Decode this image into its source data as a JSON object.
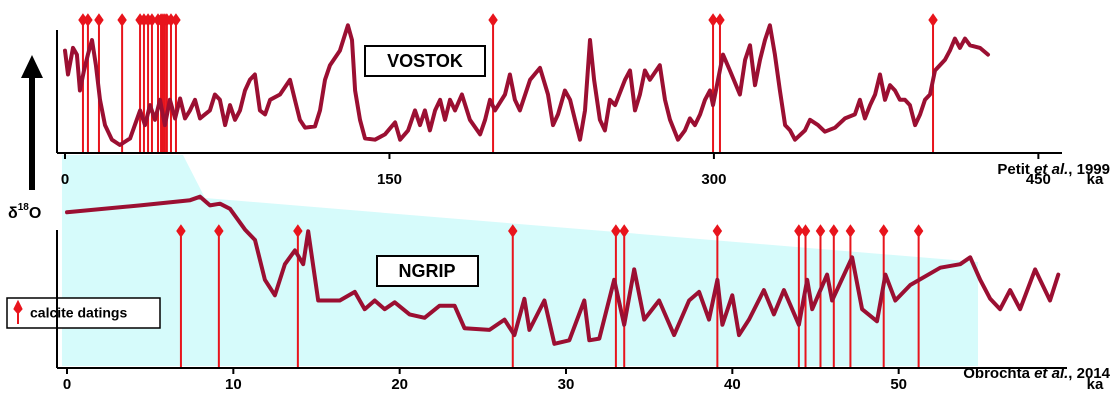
{
  "chart_data": [
    {
      "type": "line",
      "title": "VOSTOK",
      "citation": {
        "author": "Petit",
        "etal": "et al.",
        "year": ", 1999"
      },
      "xlabel": "ka",
      "xlim": [
        0,
        460
      ],
      "xticks": [
        0,
        150,
        300,
        450
      ],
      "ylim": [
        0,
        100
      ],
      "x": [
        0,
        1.4,
        3.7,
        5.5,
        6.9,
        8.8,
        10.6,
        12.5,
        14.3,
        16.2,
        18.5,
        21.7,
        25.4,
        30.1,
        34.7,
        37,
        39.3,
        41.6,
        43.9,
        46.2,
        48.5,
        50.9,
        53.2,
        55.5,
        57.8,
        60.1,
        62.4,
        64.7,
        67,
        69.3,
        71.6,
        74,
        76.3,
        78.6,
        80.9,
        83.2,
        85.5,
        87.8,
        90.1,
        92.5,
        94.8,
        99.4,
        104,
        106.3,
        108.6,
        111,
        115.6,
        117.9,
        120.2,
        122.5,
        127.1,
        130.8,
        132.7,
        134.1,
        136.4,
        138.7,
        143.3,
        147.9,
        152.6,
        154.9,
        158.6,
        161.8,
        164.1,
        166.4,
        168.7,
        171.1,
        173.4,
        175.7,
        178,
        180.3,
        183.5,
        187.2,
        191.9,
        194.2,
        196.5,
        198.8,
        203.4,
        205.7,
        208,
        210.3,
        215,
        219.6,
        223.3,
        225.6,
        227.9,
        231.1,
        233.5,
        235.8,
        238.1,
        240.4,
        242.7,
        244.6,
        247.3,
        249.6,
        251.9,
        254.3,
        258.9,
        261.2,
        263.5,
        265.8,
        268.1,
        270.4,
        275,
        277.4,
        279.7,
        283.4,
        286.6,
        288.9,
        291.2,
        293.6,
        295.9,
        298.2,
        299.6,
        301.9,
        304.2,
        307.4,
        312,
        314.4,
        316.7,
        319,
        321.3,
        323.6,
        325.9,
        328.2,
        330.5,
        332.9,
        335.2,
        337.5,
        342.1,
        344.4,
        348.1,
        351.3,
        356,
        360.6,
        365.2,
        367.5,
        369.8,
        372.2,
        374.5,
        376.8,
        379.1,
        381.4,
        383.7,
        386,
        388.3,
        390.6,
        393,
        395.3,
        397.6,
        399.9,
        402.2,
        406.8,
        409.1,
        411.4,
        413.7,
        416.1,
        418.4,
        423,
        426.7
      ],
      "series": [
        {
          "color": "#9b0f32",
          "values": [
            77,
            59,
            79,
            74,
            47,
            62,
            74,
            85,
            66,
            40,
            21,
            10,
            6,
            11,
            32,
            21,
            36,
            25,
            40,
            21,
            40,
            26,
            41,
            26,
            32,
            40,
            26,
            29,
            32,
            44,
            40,
            21,
            36,
            25,
            32,
            47,
            55,
            59,
            32,
            29,
            40,
            44,
            55,
            40,
            25,
            19,
            20,
            32,
            55,
            66,
            77,
            96,
            85,
            47,
            25,
            11,
            10,
            14,
            23,
            10,
            17,
            32,
            21,
            32,
            17,
            32,
            40,
            25,
            40,
            32,
            44,
            25,
            14,
            25,
            40,
            32,
            44,
            59,
            40,
            32,
            55,
            64,
            44,
            21,
            29,
            47,
            40,
            25,
            10,
            32,
            85,
            55,
            25,
            17,
            40,
            36,
            55,
            62,
            32,
            44,
            62,
            55,
            66,
            40,
            25,
            10,
            17,
            26,
            21,
            29,
            40,
            47,
            36,
            55,
            74,
            62,
            44,
            70,
            81,
            51,
            70,
            85,
            96,
            74,
            47,
            21,
            17,
            10,
            17,
            25,
            21,
            16,
            19,
            26,
            29,
            40,
            26,
            36,
            44,
            59,
            40,
            51,
            47,
            40,
            40,
            36,
            21,
            29,
            40,
            44,
            62,
            70,
            77,
            86,
            79,
            86,
            81,
            79,
            74
          ]
        }
      ],
      "datings": {
        "color": "#e8141c",
        "x": [
          8.3,
          10.6,
          15.7,
          26.4,
          34.7,
          36.5,
          38.4,
          40.2,
          43,
          44.4,
          45.3,
          46.2,
          47.1,
          49,
          51.3,
          197.9,
          299.6,
          302.8,
          401.3
        ]
      }
    },
    {
      "type": "line",
      "title": "NGRIP",
      "citation": {
        "author": "Obrochta",
        "etal": "et al.",
        "year": ", 2014"
      },
      "xlabel": "ka",
      "ylabel": {
        "symbol": "δ",
        "sup": "18",
        "element": "O"
      },
      "xlim": [
        0,
        60
      ],
      "xticks": [
        0,
        10,
        20,
        30,
        40,
        50
      ],
      "ylim": [
        0,
        100
      ],
      "x": [
        0,
        4.4,
        7.4,
        8.0,
        8.6,
        9.2,
        9.8,
        10.7,
        11.3,
        11.9,
        12.5,
        13.1,
        13.7,
        14.2,
        14.5,
        15.1,
        15.8,
        16.4,
        17.3,
        17.9,
        18.5,
        19.1,
        19.7,
        20.6,
        21.5,
        22.4,
        23.3,
        23.9,
        25.4,
        26.3,
        26.9,
        27.5,
        27.8,
        28.7,
        29.3,
        30.2,
        31.1,
        31.4,
        32.0,
        32.9,
        33.5,
        34.1,
        34.7,
        35.6,
        36.5,
        37.4,
        38.0,
        38.6,
        39.1,
        39.4,
        40.0,
        40.4,
        41.0,
        41.9,
        42.5,
        43.1,
        44.0,
        44.5,
        44.8,
        45.7,
        46.0,
        47.2,
        47.8,
        48.7,
        49.2,
        49.8,
        50.7,
        52.5,
        53.7,
        54.3,
        54.9,
        55.5,
        56.1,
        56.7,
        57.3,
        58.2,
        59.1,
        59.6
      ],
      "series": [
        {
          "color": "#9b0f32",
          "values": [
            90,
            94,
            97,
            99,
            94,
            95,
            92,
            80,
            74,
            51,
            42,
            60,
            68,
            60,
            79,
            39,
            39,
            39,
            44,
            34,
            39,
            34,
            38,
            31,
            29,
            36,
            36,
            23,
            22,
            28,
            19,
            40,
            22,
            39,
            14,
            16,
            39,
            16,
            17,
            51,
            25,
            57,
            28,
            39,
            19,
            39,
            44,
            28,
            51,
            25,
            42,
            19,
            28,
            45,
            31,
            45,
            25,
            51,
            34,
            54,
            39,
            64,
            34,
            27,
            54,
            39,
            48,
            58,
            60,
            64,
            51,
            40,
            34,
            45,
            34,
            57,
            39,
            54
          ]
        }
      ],
      "datings": {
        "name": "calcite datings",
        "color": "#e8141c",
        "x": [
          6.85,
          9.13,
          13.88,
          26.8,
          33.0,
          33.5,
          39.1,
          44.0,
          44.4,
          45.3,
          46.1,
          47.1,
          49.1,
          51.2
        ]
      }
    }
  ]
}
